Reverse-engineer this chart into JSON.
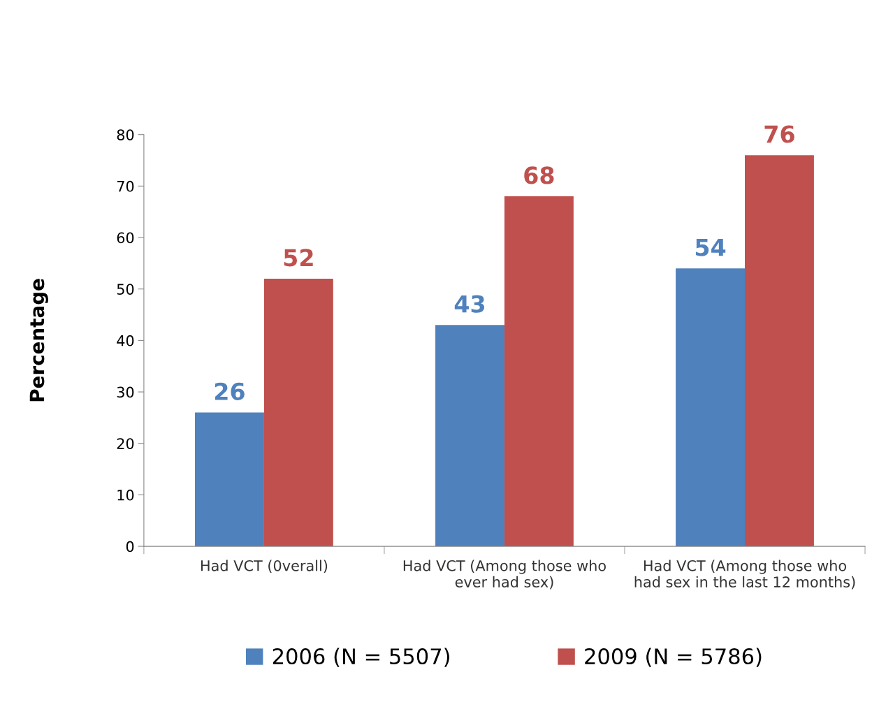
{
  "chart_data": {
    "type": "bar",
    "ylabel": "Percentage",
    "categories": [
      "Had VCT (0verall)",
      "Had VCT (Among those who\never had sex)",
      "Had VCT (Among those who\nhad sex in the last 12 months)"
    ],
    "series": [
      {
        "name": "2006 (N = 5507)",
        "color": "#4f81bd",
        "values": [
          26,
          43,
          54
        ]
      },
      {
        "name": "2009 (N = 5786)",
        "color": "#c0504d",
        "values": [
          52,
          68,
          76
        ]
      }
    ],
    "ylim": [
      0,
      80
    ],
    "yticks": [
      0,
      10,
      20,
      30,
      40,
      50,
      60,
      70,
      80
    ],
    "grid": false,
    "legend": "bottom",
    "data_labels": true
  }
}
